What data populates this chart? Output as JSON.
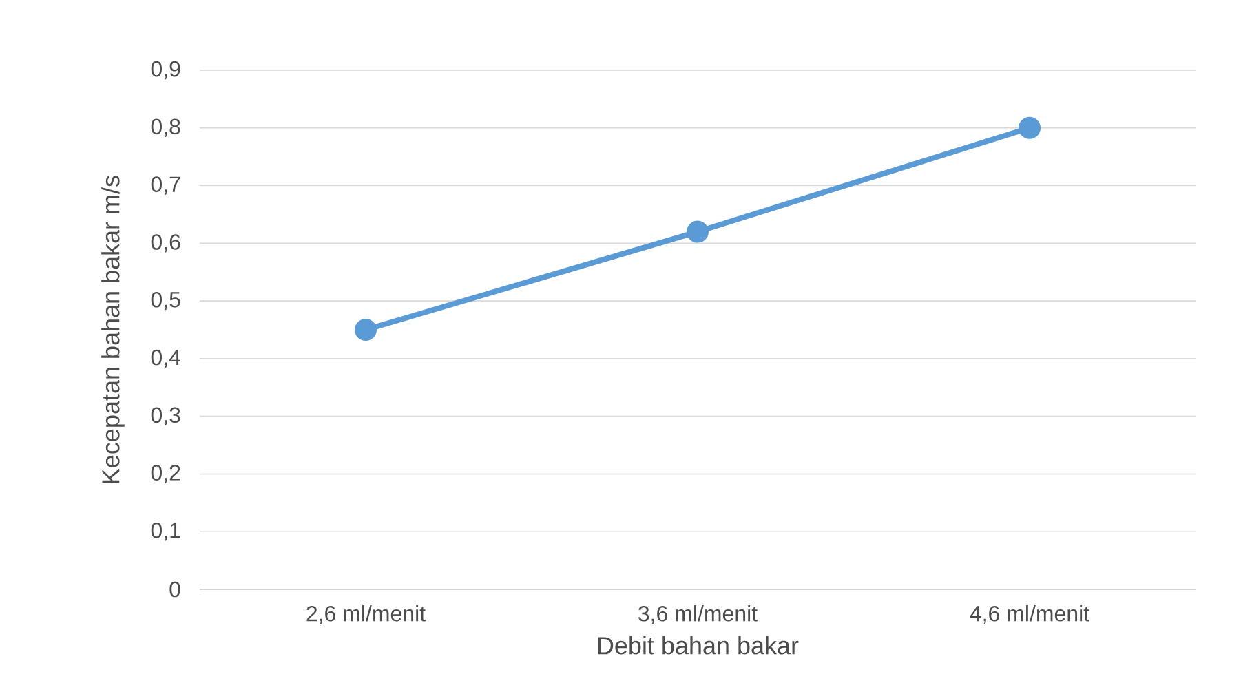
{
  "chart_data": {
    "type": "line",
    "xlabel": "Debit bahan bakar",
    "ylabel": "Kecepatan bahan bakar m/s",
    "categories": [
      "2,6 ml/menit",
      "3,6 ml/menit",
      "4,6 ml/menit"
    ],
    "series": [
      {
        "color": "#5b9bd5",
        "values": [
          0.45,
          0.62,
          0.8
        ]
      }
    ],
    "ylim": [
      0,
      0.9
    ],
    "yticks": [
      0,
      {
        "value": 0.1,
        "label": "0,1"
      },
      {
        "value": 0.2,
        "label": "0,2"
      },
      {
        "value": 0.3,
        "label": "0,3"
      },
      {
        "value": 0.4,
        "label": "0,4"
      },
      {
        "value": 0.5,
        "label": "0,5"
      },
      {
        "value": 0.6,
        "label": "0,6"
      },
      {
        "value": 0.7,
        "label": "0,7"
      },
      {
        "value": 0.8,
        "label": "0,8"
      },
      {
        "value": 0.9,
        "label": "0,9"
      }
    ],
    "grid": "y",
    "marker": "circle",
    "line_style": "solid"
  }
}
